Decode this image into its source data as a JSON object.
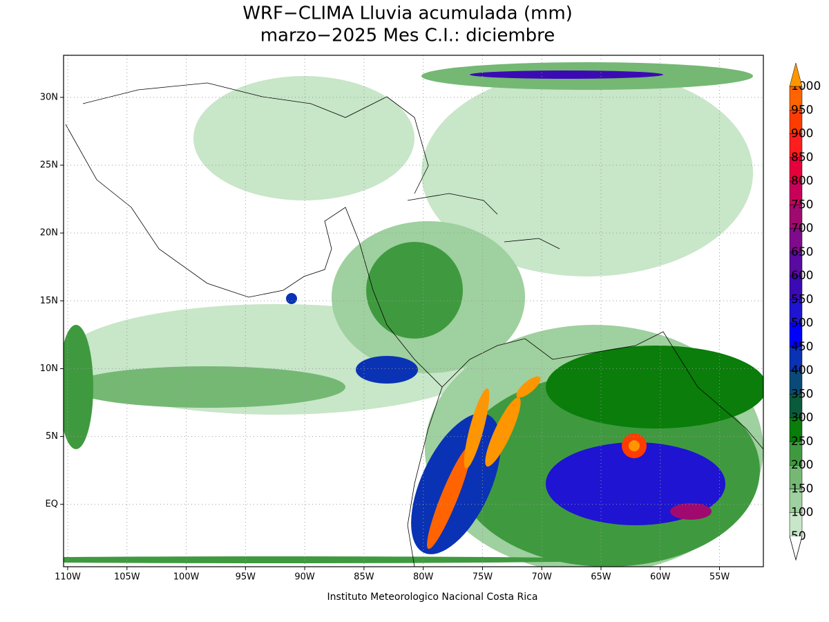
{
  "map": {
    "title": [
      "WRF−CLIMA Lluvia acumulada (mm)",
      "marzo−2025 Mes C.I.: diciembre"
    ],
    "xlim": [
      -110.35,
      -51.3
    ],
    "ylim": [
      -4.6,
      33.1
    ],
    "xticks": [
      {
        "value": -110,
        "label": "110W"
      },
      {
        "value": -105,
        "label": "105W"
      },
      {
        "value": -100,
        "label": "100W"
      },
      {
        "value": -95,
        "label": "95W"
      },
      {
        "value": -90,
        "label": "90W"
      },
      {
        "value": -85,
        "label": "85W"
      },
      {
        "value": -80,
        "label": "80W"
      },
      {
        "value": -75,
        "label": "75W"
      },
      {
        "value": -70,
        "label": "70W"
      },
      {
        "value": -65,
        "label": "65W"
      },
      {
        "value": -60,
        "label": "60W"
      },
      {
        "value": -55,
        "label": "55W"
      }
    ],
    "yticks": [
      {
        "value": 0,
        "label": "EQ"
      },
      {
        "value": 5,
        "label": "5N"
      },
      {
        "value": 10,
        "label": "10N"
      },
      {
        "value": 15,
        "label": "15N"
      },
      {
        "value": 20,
        "label": "20N"
      },
      {
        "value": 25,
        "label": "25N"
      },
      {
        "value": 30,
        "label": "30N"
      }
    ],
    "grid": true,
    "colorbar": {
      "levels": [
        50,
        100,
        150,
        200,
        250,
        300,
        350,
        400,
        450,
        500,
        550,
        600,
        650,
        700,
        750,
        800,
        850,
        900,
        950,
        1000
      ],
      "colors": [
        "#c8e6c8",
        "#9fd09f",
        "#74b874",
        "#3f9a3f",
        "#0a7d0a",
        "#0a5a3c",
        "#0a4a78",
        "#0a32b4",
        "#0000ff",
        "#1e14d2",
        "#3c0ab4",
        "#5a0aa0",
        "#800a8c",
        "#a00a6e",
        "#c8005a",
        "#e6003c",
        "#ff1e1e",
        "#ff3c00",
        "#ff6400",
        "#ff9600"
      ]
    },
    "credit": "Instituto Meteorologico Nacional Costa Rica"
  }
}
